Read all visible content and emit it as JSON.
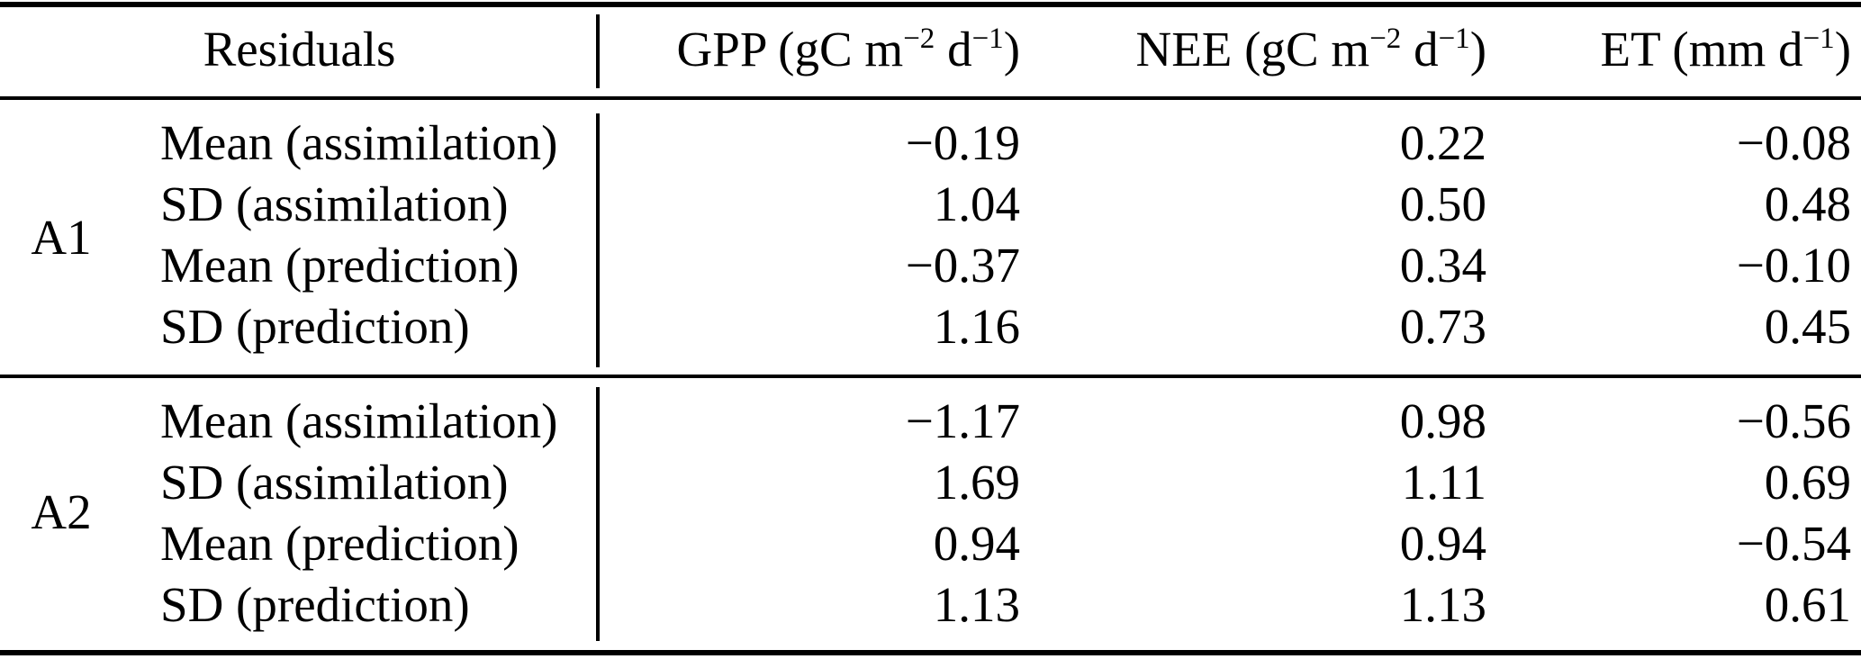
{
  "table": {
    "header": {
      "residuals_label": "Residuals",
      "columns": [
        {
          "name": "gpp",
          "parts": [
            "GPP (gC m",
            "−2",
            " d",
            "−1",
            ")"
          ]
        },
        {
          "name": "nee",
          "parts": [
            "NEE (gC m",
            "−2",
            " d",
            "−1",
            ")"
          ]
        },
        {
          "name": "et",
          "parts": [
            "ET (mm d",
            "−1",
            ")"
          ]
        }
      ]
    },
    "blocks": [
      {
        "group": "A1",
        "rows": [
          {
            "label": "Mean (assimilation)",
            "gpp": "−0.19",
            "nee": "0.22",
            "et": "−0.08"
          },
          {
            "label": "SD (assimilation)",
            "gpp": "1.04",
            "nee": "0.50",
            "et": "0.48"
          },
          {
            "label": "Mean (prediction)",
            "gpp": "−0.37",
            "nee": "0.34",
            "et": "−0.10"
          },
          {
            "label": "SD (prediction)",
            "gpp": "1.16",
            "nee": "0.73",
            "et": "0.45"
          }
        ]
      },
      {
        "group": "A2",
        "rows": [
          {
            "label": "Mean (assimilation)",
            "gpp": "−1.17",
            "nee": "0.98",
            "et": "−0.56"
          },
          {
            "label": "SD (assimilation)",
            "gpp": "1.69",
            "nee": "1.11",
            "et": "0.69"
          },
          {
            "label": "Mean (prediction)",
            "gpp": "0.94",
            "nee": "0.94",
            "et": "−0.54"
          },
          {
            "label": "SD (prediction)",
            "gpp": "1.13",
            "nee": "1.13",
            "et": "0.61"
          }
        ]
      }
    ]
  },
  "colors": {
    "background": "#ffffff",
    "text": "#000000",
    "rule": "#000000"
  }
}
